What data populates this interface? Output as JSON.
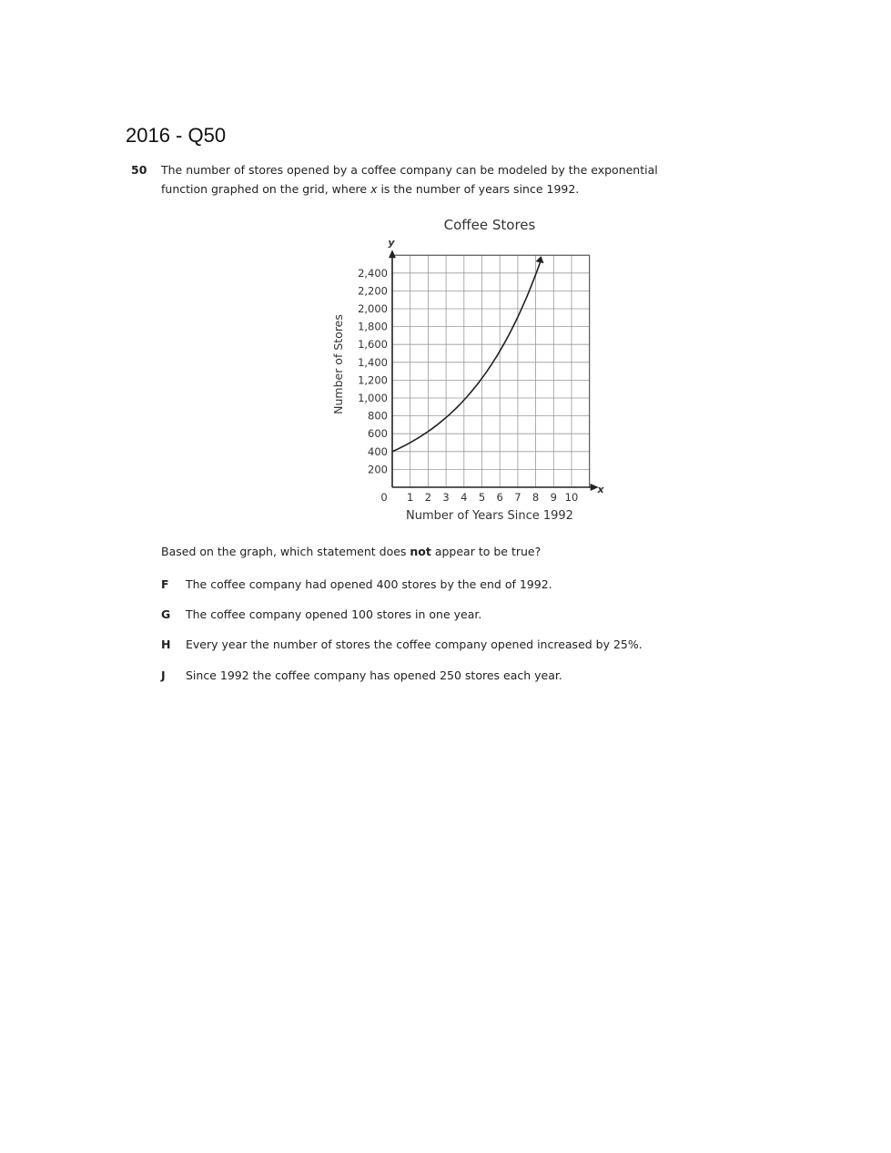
{
  "header": {
    "title": "2016 - Q50"
  },
  "question": {
    "number": "50",
    "text_line1": "The number of stores opened by a coffee company can be modeled by the exponential",
    "text_line2_a": "function graphed on the grid, where ",
    "text_line2_var": "x",
    "text_line2_b": " is the number of years since 1992.",
    "prompt_a": "Based on the graph, which statement does ",
    "prompt_bold": "not",
    "prompt_b": " appear to be true?",
    "options": [
      {
        "letter": "F",
        "text": "The coffee company had opened 400 stores by the end of 1992."
      },
      {
        "letter": "G",
        "text": "The coffee company opened 100 stores in one year."
      },
      {
        "letter": "H",
        "text": "Every year the number of stores the coffee company opened increased by 25%."
      },
      {
        "letter": "J",
        "text": "Since 1992 the coffee company has opened 250 stores each year."
      }
    ]
  },
  "chart_data": {
    "type": "line",
    "title": "Coffee Stores",
    "xlabel": "Number of Years Since 1992",
    "ylabel": "Number of Stores",
    "x_axis_symbol": "x",
    "y_axis_symbol": "y",
    "xlim": [
      0,
      11
    ],
    "ylim": [
      0,
      2600
    ],
    "xticks": [
      "0",
      "1",
      "2",
      "3",
      "4",
      "5",
      "6",
      "7",
      "8",
      "9",
      "10"
    ],
    "yticks": [
      "200",
      "400",
      "600",
      "800",
      "1,000",
      "1,200",
      "1,400",
      "1,600",
      "1,800",
      "2,000",
      "2,200",
      "2,400"
    ],
    "grid": true,
    "series": [
      {
        "function": "y = 400(1.25)^x",
        "x_start": 0,
        "x_end": 8.3,
        "x": [
          0,
          1,
          2,
          3,
          4,
          5,
          6,
          7,
          8
        ],
        "values": [
          400,
          500,
          625,
          781,
          977,
          1221,
          1526,
          1907,
          2384
        ]
      }
    ],
    "colors": {
      "curve": "#222222",
      "grid": "#999999"
    }
  }
}
